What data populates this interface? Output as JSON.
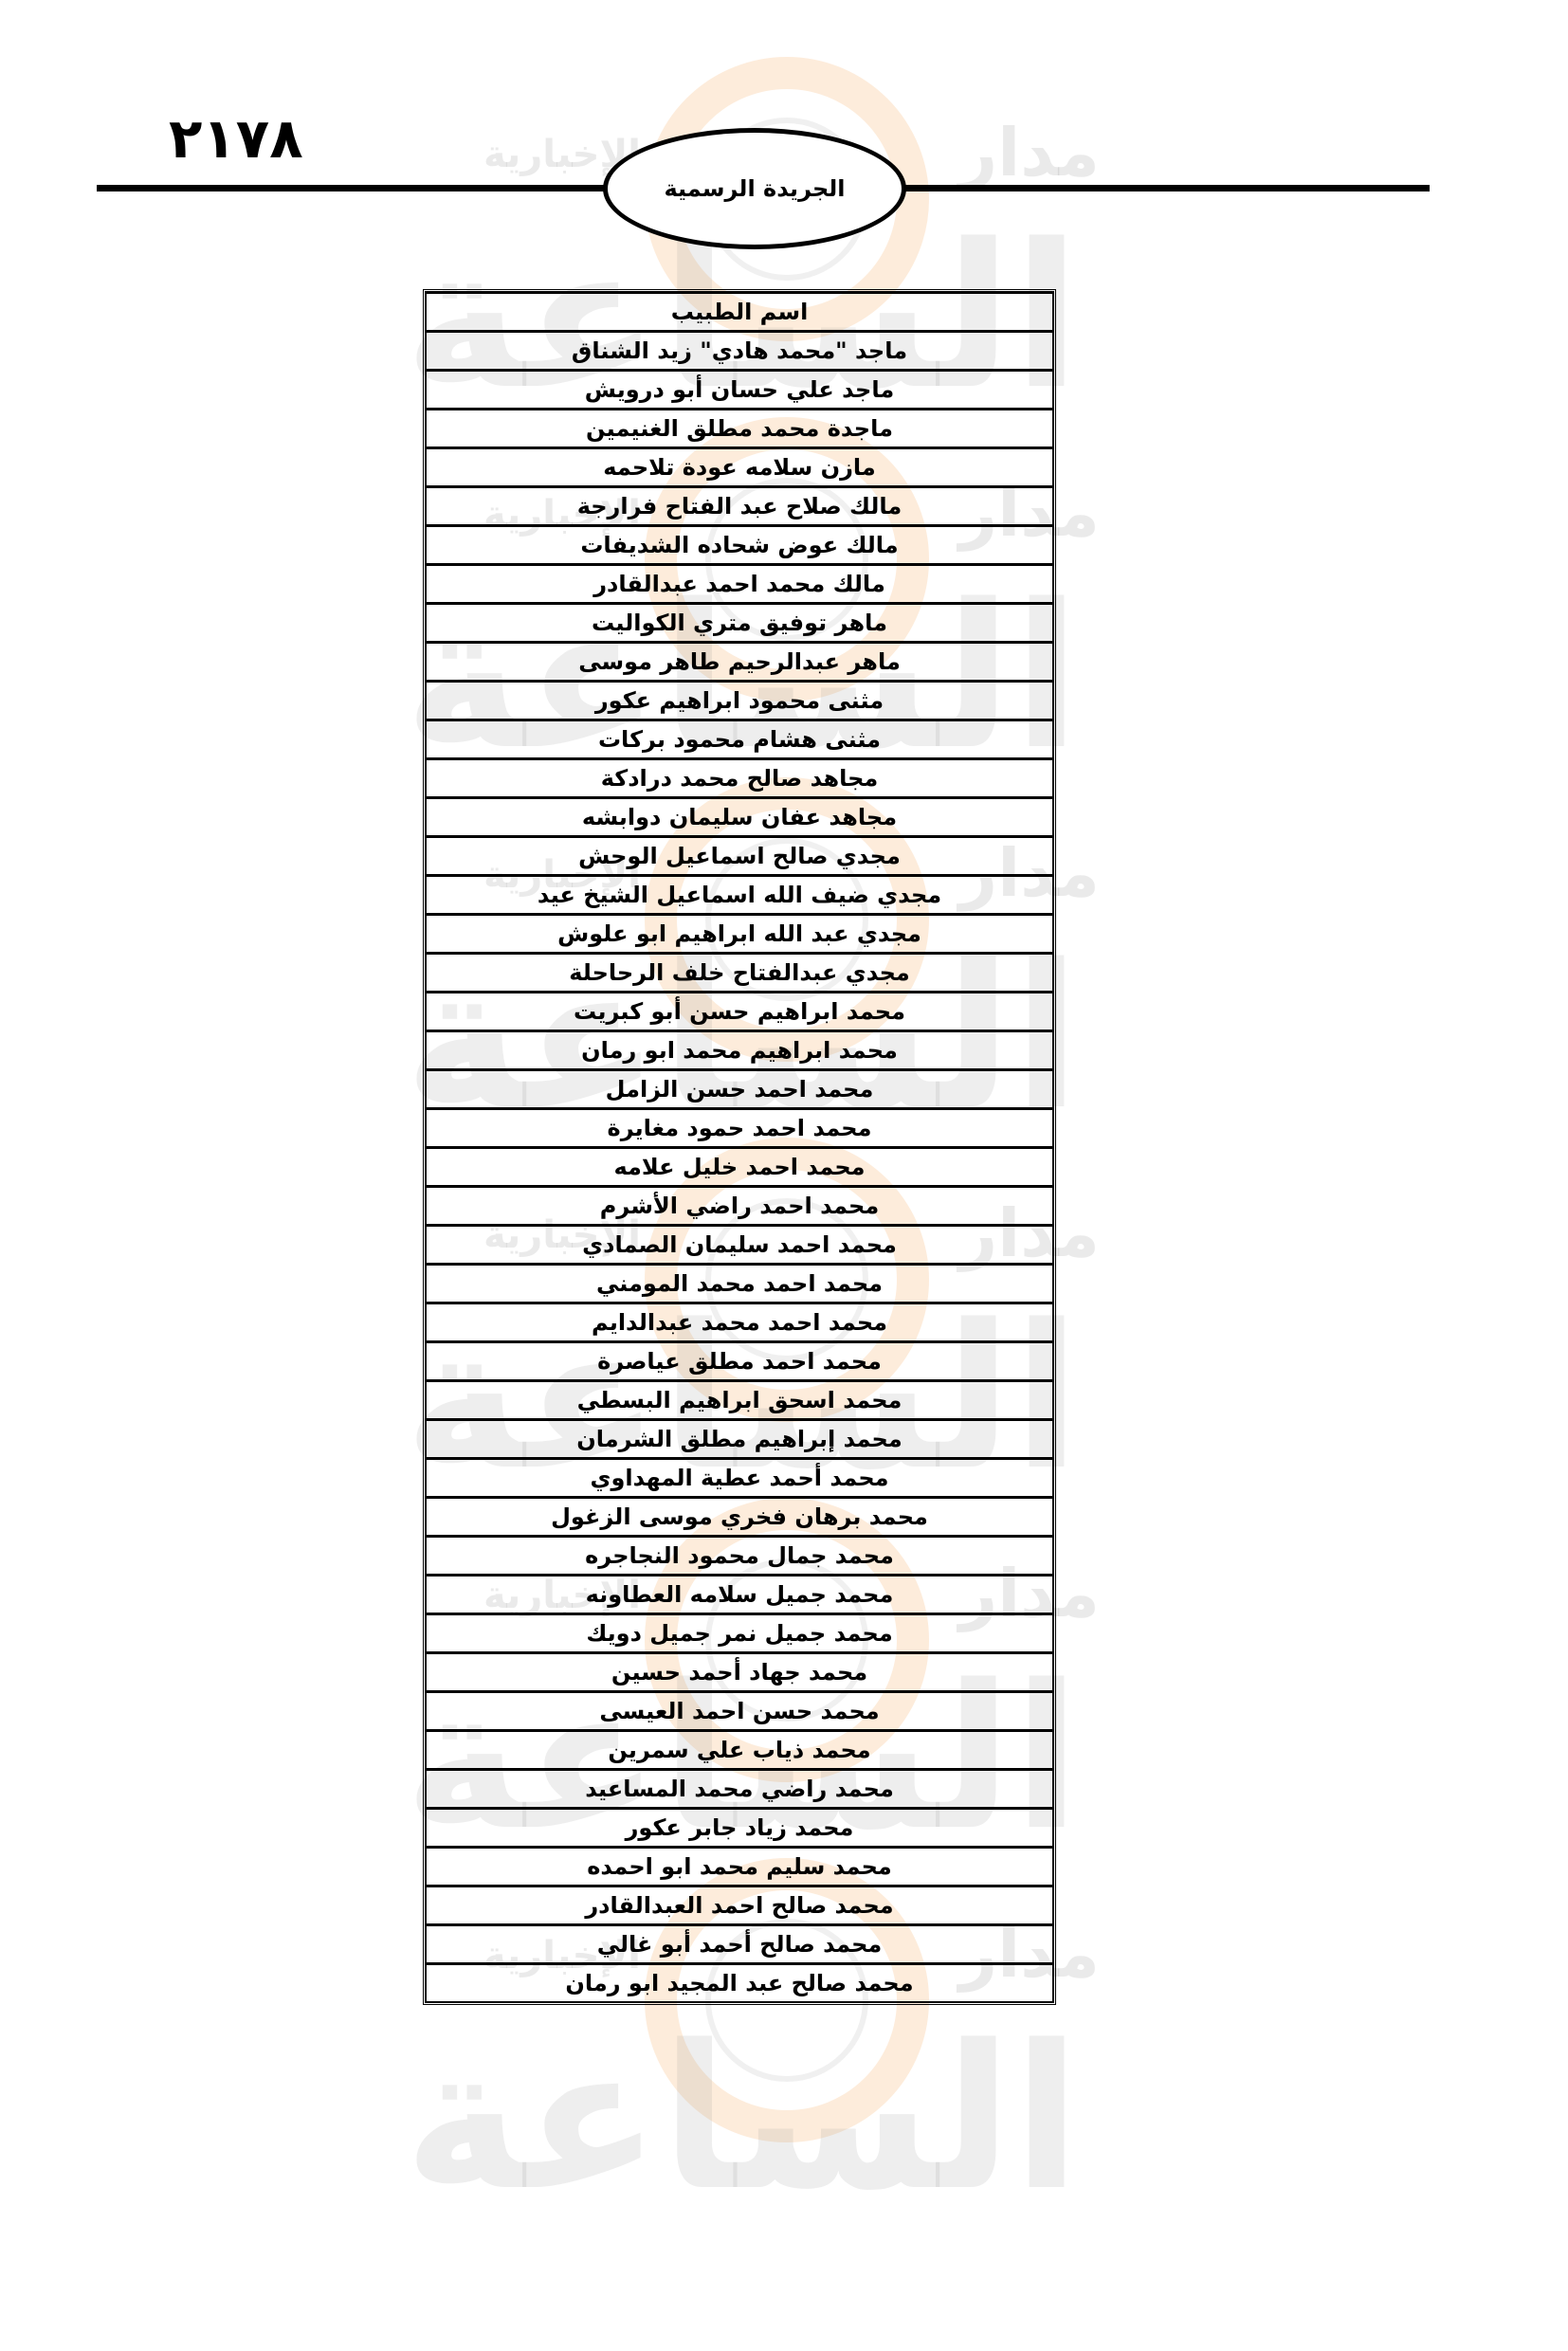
{
  "header": {
    "page_number": "٢١٧٨",
    "publication": "الجريدة الرسمية"
  },
  "watermark": {
    "text_large": "الساعة",
    "text_top": "مدار",
    "text_small": "الإخبارية",
    "colors": {
      "ring": "#f5aa5a",
      "text": "#969696"
    }
  },
  "table": {
    "column_header": "اسم الطبيب",
    "rows": [
      "ماجد \"محمد هادي\" زيد الشناق",
      "ماجد علي حسان أبو درويش",
      "ماجدة محمد مطلق الغنيمين",
      "مازن سلامه عودة تلاحمه",
      "مالك صلاح عبد الفتاح فرارجة",
      "مالك عوض شحاده الشديفات",
      "مالك محمد احمد عبدالقادر",
      "ماهر توفيق متري الكواليت",
      "ماهر عبدالرحيم طاهر موسى",
      "مثنى محمود ابراهيم عكور",
      "مثنى هشام محمود بركات",
      "مجاهد صالح محمد درادكة",
      "مجاهد عفان سليمان دوابشه",
      "مجدي صالح اسماعيل الوحش",
      "مجدي ضيف الله اسماعيل الشيخ عيد",
      "مجدي عبد الله ابراهيم ابو علوش",
      "مجدي عبدالفتاح خلف الرحاحلة",
      "محمد ابراهيم حسن أبو كبريت",
      "محمد ابراهيم محمد ابو رمان",
      "محمد احمد حسن الزامل",
      "محمد احمد حمود مغايرة",
      "محمد احمد خليل علامه",
      "محمد احمد راضي الأشرم",
      "محمد احمد سليمان الصمادي",
      "محمد احمد محمد المومني",
      "محمد احمد محمد عبدالدايم",
      "محمد احمد مطلق عياصرة",
      "محمد اسحق ابراهيم البسطي",
      "محمد إبراهيم مطلق الشرمان",
      "محمد أحمد عطية المهداوي",
      "محمد برهان فخري موسى الزغول",
      "محمد جمال محمود النجاجره",
      "محمد جميل سلامه العطاونه",
      "محمد جميل نمر جميل دويك",
      "محمد جهاد أحمد حسين",
      "محمد حسن احمد العيسى",
      "محمد ذياب علي سمرين",
      "محمد راضي محمد المساعيد",
      "محمد زياد جابر عكور",
      "محمد سليم محمد ابو احمده",
      "محمد صالح احمد العبدالقادر",
      "محمد صالح أحمد أبو غالي",
      "محمد صالح عبد المجيد ابو رمان"
    ]
  }
}
